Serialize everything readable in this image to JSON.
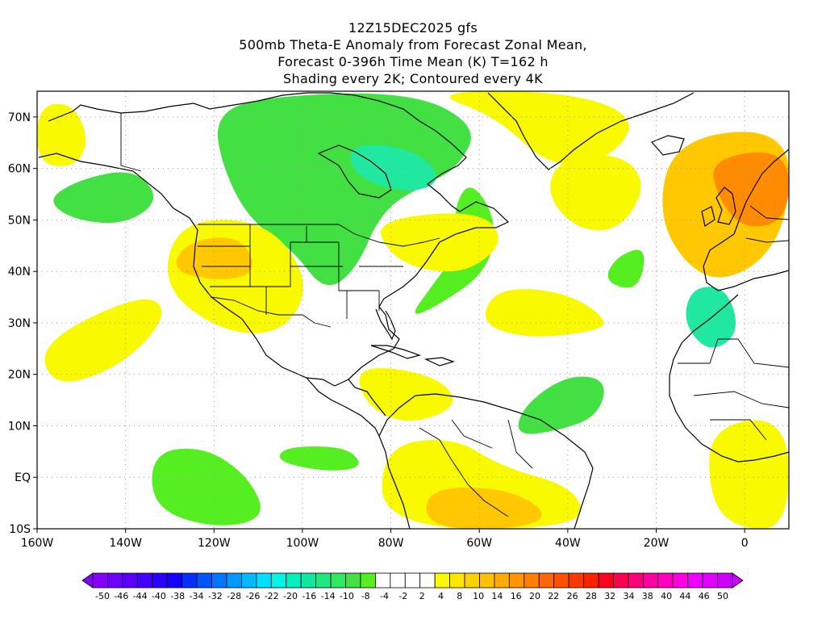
{
  "header": {
    "run": "12Z15DEC2025 gfs",
    "line1": "500mb Theta-E Anomaly from Forecast Zonal Mean,",
    "line2": "Forecast 0-396h Time Mean (K) T=162 h",
    "line3": "Shading every 2K; Contoured every 4K"
  },
  "map": {
    "lon_range": [
      -160,
      10
    ],
    "lat_range": [
      -10,
      75
    ],
    "lat_ticks": [
      {
        "value": 70,
        "label": "70N"
      },
      {
        "value": 60,
        "label": "60N"
      },
      {
        "value": 50,
        "label": "50N"
      },
      {
        "value": 40,
        "label": "40N"
      },
      {
        "value": 30,
        "label": "30N"
      },
      {
        "value": 20,
        "label": "20N"
      },
      {
        "value": 10,
        "label": "10N"
      },
      {
        "value": 0,
        "label": "EQ"
      },
      {
        "value": -10,
        "label": "10S"
      }
    ],
    "lon_ticks": [
      {
        "value": -160,
        "label": "160W"
      },
      {
        "value": -140,
        "label": "140W"
      },
      {
        "value": -120,
        "label": "120W"
      },
      {
        "value": -100,
        "label": "100W"
      },
      {
        "value": -80,
        "label": "80W"
      },
      {
        "value": -60,
        "label": "60W"
      },
      {
        "value": -40,
        "label": "40W"
      },
      {
        "value": -20,
        "label": "20W"
      },
      {
        "value": 0,
        "label": "0"
      }
    ],
    "anomaly_regions": [
      {
        "name": "canada-cold-core",
        "value": -12,
        "color": "#43e043",
        "points": [
          [
            -110,
            74
          ],
          [
            -75,
            75
          ],
          [
            -60,
            68
          ],
          [
            -65,
            60
          ],
          [
            -72,
            57
          ],
          [
            -82,
            52
          ],
          [
            -88,
            40
          ],
          [
            -95,
            36
          ],
          [
            -102,
            44
          ],
          [
            -112,
            50
          ],
          [
            -118,
            60
          ],
          [
            -120,
            70
          ]
        ]
      },
      {
        "name": "canada-coldest",
        "value": -18,
        "color": "#20e8a0",
        "points": [
          [
            -90,
            65
          ],
          [
            -75,
            64
          ],
          [
            -68,
            58
          ],
          [
            -75,
            55
          ],
          [
            -88,
            58
          ]
        ]
      },
      {
        "name": "atlantic-cold-arc",
        "value": -8,
        "color": "#55ee20",
        "points": [
          [
            -62,
            58
          ],
          [
            -56,
            50
          ],
          [
            -58,
            40
          ],
          [
            -70,
            33
          ],
          [
            -76,
            31
          ],
          [
            -70,
            38
          ],
          [
            -64,
            45
          ],
          [
            -66,
            52
          ]
        ]
      },
      {
        "name": "gulf-of-alaska-cold",
        "value": -10,
        "color": "#43e043",
        "points": [
          [
            -150,
            58
          ],
          [
            -138,
            60
          ],
          [
            -132,
            54
          ],
          [
            -140,
            49
          ],
          [
            -152,
            50
          ],
          [
            -158,
            54
          ]
        ]
      },
      {
        "name": "tropical-atlantic-cold",
        "value": -12,
        "color": "#43e043",
        "points": [
          [
            -50,
            14
          ],
          [
            -40,
            20
          ],
          [
            -31,
            19
          ],
          [
            -33,
            12
          ],
          [
            -42,
            9
          ],
          [
            -52,
            8
          ]
        ]
      },
      {
        "name": "east-pacific-cold-a",
        "value": -10,
        "color": "#55ee20",
        "points": [
          [
            -134,
            5
          ],
          [
            -122,
            6
          ],
          [
            -112,
            0
          ],
          [
            -108,
            -8
          ],
          [
            -120,
            -10
          ],
          [
            -134,
            -6
          ]
        ]
      },
      {
        "name": "east-pacific-cold-b",
        "value": -8,
        "color": "#55ee20",
        "points": [
          [
            -104,
            6
          ],
          [
            -90,
            6
          ],
          [
            -86,
            2
          ],
          [
            -94,
            1
          ],
          [
            -106,
            3
          ]
        ]
      },
      {
        "name": "mid-atlantic-cold",
        "value": -8,
        "color": "#55ee20",
        "points": [
          [
            -29,
            43
          ],
          [
            -22,
            45
          ],
          [
            -24,
            36
          ],
          [
            -32,
            38
          ]
        ]
      },
      {
        "name": "azores-cold-core",
        "value": -16,
        "color": "#20e8a0",
        "points": [
          [
            -12,
            37
          ],
          [
            -4,
            37
          ],
          [
            -1,
            28
          ],
          [
            -8,
            24
          ],
          [
            -14,
            30
          ]
        ]
      },
      {
        "name": "west-atlantic-warm",
        "value": 6,
        "color": "#f9f900",
        "points": [
          [
            -84,
            50
          ],
          [
            -60,
            52
          ],
          [
            -54,
            46
          ],
          [
            -62,
            40
          ],
          [
            -72,
            40
          ],
          [
            -80,
            43
          ]
        ]
      },
      {
        "name": "southwest-us-warm",
        "value": 8,
        "color": "#f9f900",
        "points": [
          [
            -128,
            50
          ],
          [
            -108,
            50
          ],
          [
            -98,
            38
          ],
          [
            -104,
            28
          ],
          [
            -118,
            28
          ],
          [
            -132,
            37
          ]
        ]
      },
      {
        "name": "southwest-us-warm-core",
        "value": 12,
        "color": "#ffc800",
        "points": [
          [
            -126,
            46
          ],
          [
            -114,
            47
          ],
          [
            -110,
            40
          ],
          [
            -118,
            38
          ],
          [
            -130,
            40
          ]
        ]
      },
      {
        "name": "subtropical-atlantic-warm",
        "value": 8,
        "color": "#f9f900",
        "points": [
          [
            -56,
            37
          ],
          [
            -40,
            36
          ],
          [
            -30,
            30
          ],
          [
            -36,
            28
          ],
          [
            -50,
            27
          ],
          [
            -60,
            30
          ]
        ]
      },
      {
        "name": "north-atlantic-warm",
        "value": 8,
        "color": "#f9f900",
        "points": [
          [
            -42,
            62
          ],
          [
            -28,
            63
          ],
          [
            -22,
            57
          ],
          [
            -28,
            48
          ],
          [
            -38,
            48
          ],
          [
            -45,
            55
          ]
        ]
      },
      {
        "name": "europe-warm",
        "value": 10,
        "color": "#ffc800",
        "points": [
          [
            -16,
            66
          ],
          [
            10,
            68
          ],
          [
            10,
            50
          ],
          [
            2,
            40
          ],
          [
            -10,
            38
          ],
          [
            -20,
            50
          ]
        ]
      },
      {
        "name": "europe-warm-core",
        "value": 18,
        "color": "#ff8c00",
        "points": [
          [
            -8,
            62
          ],
          [
            10,
            64
          ],
          [
            10,
            50
          ],
          [
            0,
            48
          ],
          [
            -6,
            54
          ]
        ]
      },
      {
        "name": "south-america-warm",
        "value": 10,
        "color": "#f9f900",
        "points": [
          [
            -82,
            6
          ],
          [
            -66,
            8
          ],
          [
            -55,
            2
          ],
          [
            -38,
            -2
          ],
          [
            -36,
            -10
          ],
          [
            -82,
            -10
          ]
        ]
      },
      {
        "name": "south-america-warm-core",
        "value": 14,
        "color": "#ffc800",
        "points": [
          [
            -72,
            -2
          ],
          [
            -54,
            -2
          ],
          [
            -44,
            -7
          ],
          [
            -50,
            -10
          ],
          [
            -72,
            -10
          ]
        ]
      },
      {
        "name": "caribbean-warm",
        "value": 8,
        "color": "#f9f900",
        "points": [
          [
            -88,
            22
          ],
          [
            -70,
            20
          ],
          [
            -64,
            14
          ],
          [
            -76,
            10
          ],
          [
            -86,
            14
          ]
        ]
      },
      {
        "name": "arctic-warm",
        "value": 6,
        "color": "#f9f900",
        "points": [
          [
            -72,
            75
          ],
          [
            -40,
            75
          ],
          [
            -24,
            70
          ],
          [
            -30,
            62
          ],
          [
            -44,
            60
          ],
          [
            -56,
            70
          ]
        ]
      },
      {
        "name": "east-pacific-warm-band",
        "value": 6,
        "color": "#f9f900",
        "points": [
          [
            -160,
            26
          ],
          [
            -136,
            36
          ],
          [
            -130,
            32
          ],
          [
            -140,
            22
          ],
          [
            -156,
            17
          ]
        ]
      },
      {
        "name": "west-africa-warm",
        "value": 8,
        "color": "#f9f900",
        "points": [
          [
            -8,
            10
          ],
          [
            10,
            12
          ],
          [
            10,
            -10
          ],
          [
            -2,
            -10
          ],
          [
            -8,
            -4
          ]
        ]
      },
      {
        "name": "alaska-warm",
        "value": 8,
        "color": "#f9f900",
        "points": [
          [
            -160,
            72
          ],
          [
            -152,
            73
          ],
          [
            -148,
            65
          ],
          [
            -152,
            60
          ],
          [
            -160,
            61
          ]
        ]
      }
    ]
  },
  "colorbar": {
    "colors": [
      "#8800ff",
      "#6e00ff",
      "#5a00ff",
      "#4400ff",
      "#2a00ff",
      "#1500ff",
      "#0030ff",
      "#0055ff",
      "#0077ff",
      "#0099ff",
      "#00bbff",
      "#00dfff",
      "#00f5e6",
      "#00f0c0",
      "#10e8a0",
      "#20e880",
      "#30e860",
      "#43e043",
      "#55ee20",
      "#ffffff",
      "#ffffff",
      "#ffffff",
      "#ffffff",
      "#f9f900",
      "#ffe600",
      "#ffd000",
      "#ffc000",
      "#ffaa00",
      "#ff9600",
      "#ff8000",
      "#ff6800",
      "#ff5000",
      "#ff3800",
      "#ff2000",
      "#ff0020",
      "#ff0050",
      "#ff0078",
      "#ff00a0",
      "#ff00c0",
      "#ff00e0",
      "#f000ff",
      "#e000ff",
      "#d000ff"
    ],
    "labels": [
      "-50",
      "-46",
      "-44",
      "-40",
      "-38",
      "-34",
      "-32",
      "-28",
      "-26",
      "-22",
      "-20",
      "-16",
      "-14",
      "-10",
      "-8",
      "-4",
      "-2",
      "2",
      "4",
      "8",
      "10",
      "14",
      "16",
      "20",
      "22",
      "26",
      "28",
      "32",
      "34",
      "38",
      "40",
      "44",
      "46",
      "50"
    ]
  }
}
